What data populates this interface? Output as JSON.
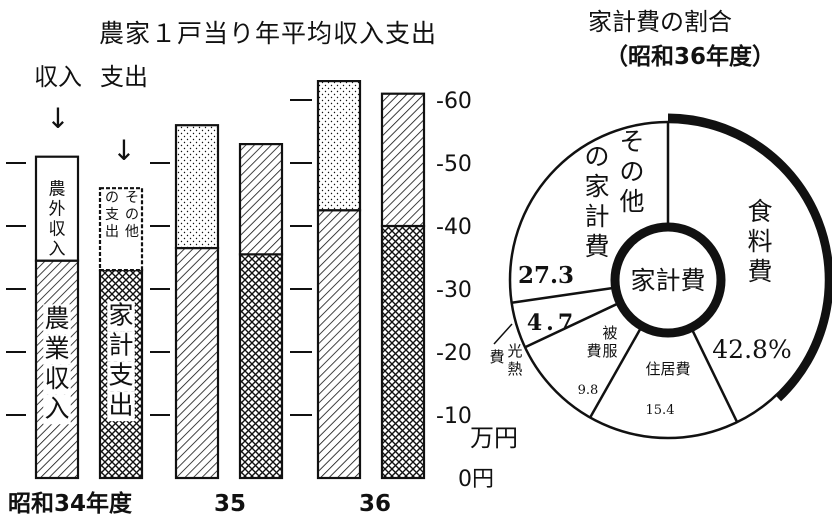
{
  "chart_data": [
    {
      "type": "bar",
      "title": "農家１戸当り年平均収入支出",
      "ylabel": "万円",
      "ylim": [
        0,
        65
      ],
      "yticks": [
        "0円",
        "10",
        "20",
        "30",
        "40",
        "50",
        "60"
      ],
      "x_prefix": "昭和",
      "x_suffix": "年度",
      "categories": [
        "34",
        "35",
        "36"
      ],
      "group_labels": {
        "income": "収入",
        "expense": "支出"
      },
      "arrow_glyph": "↓",
      "series": [
        {
          "name": "農業収入",
          "group": "income",
          "values": [
            34.5,
            36.5,
            42.5
          ]
        },
        {
          "name": "農外収入",
          "group": "income",
          "values": [
            16.5,
            19.5,
            20.5
          ]
        },
        {
          "name": "家計支出",
          "group": "expense",
          "values": [
            33.0,
            35.5,
            40.0
          ]
        },
        {
          "name": "その他の支出",
          "group": "expense",
          "values": [
            13.0,
            17.5,
            21.0
          ]
        }
      ]
    },
    {
      "type": "pie",
      "title": "家計費の割合",
      "subtitle": "（昭和36年度）",
      "center_label": "家計費",
      "slices": [
        {
          "name": "食料費",
          "value": 42.8,
          "label": "42.8%"
        },
        {
          "name": "住居費",
          "value": 15.4,
          "label": "15.4"
        },
        {
          "name": "被服費",
          "value": 9.8,
          "label": "9.8"
        },
        {
          "name": "光熱費",
          "value": 4.7,
          "label": "4.7"
        },
        {
          "name": "その他の家計費",
          "value": 27.3,
          "label": "27.3"
        }
      ]
    }
  ]
}
